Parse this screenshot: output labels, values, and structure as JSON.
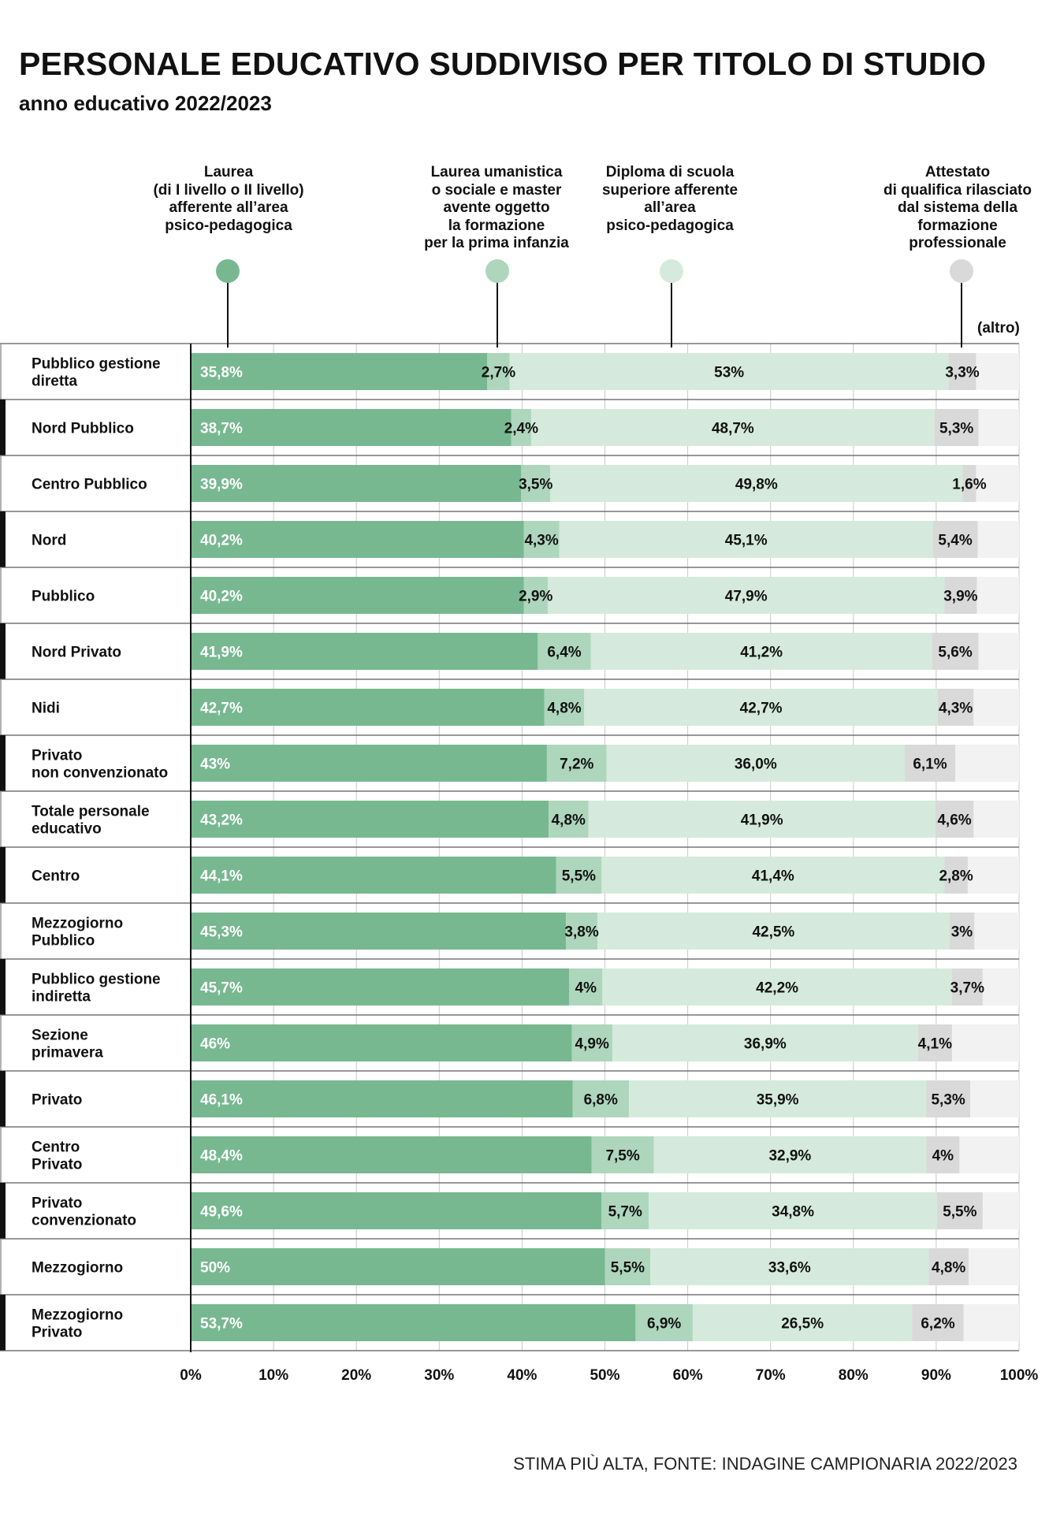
{
  "title": "PERSONALE EDUCATIVO SUDDIVISO PER TITOLO DI STUDIO",
  "subtitle": "anno educativo 2022/2023",
  "footer": "STIMA PIÙ ALTA,  FONTE: INDAGINE CAMPIONARIA 2022/2023",
  "colors": {
    "laurea": "#78b891",
    "laurea_umanistica": "#aed6bc",
    "diploma": "#d5eadc",
    "attestato": "#d9d9d9",
    "altro": "#f2f2f2"
  },
  "chart_data": {
    "type": "bar",
    "orientation": "horizontal",
    "stacked": true,
    "xlim": [
      0,
      100
    ],
    "x_ticks": [
      "0%",
      "10%",
      "20%",
      "30%",
      "40%",
      "50%",
      "60%",
      "70%",
      "80%",
      "90%",
      "100%"
    ],
    "legend": [
      {
        "key": "laurea",
        "label": "Laurea\n(di I livello o II livello)\nafferente all’area\npsico-pedagogica"
      },
      {
        "key": "laurea_umanistica",
        "label": "Laurea umanistica\no sociale e master\navente oggetto\nla formazione\nper la prima infanzia"
      },
      {
        "key": "diploma",
        "label": "Diploma di scuola\nsuperiore afferente\nall’area\npsico-pedagogica"
      },
      {
        "key": "attestato",
        "label": "Attestato\ndi qualifica rilasciato\ndal sistema della\nformazione\nprofessionale"
      },
      {
        "key": "altro",
        "label": "(altro)"
      }
    ],
    "rows": [
      {
        "category": "Pubblico gestione\ndiretta",
        "marker": "white",
        "values": [
          35.8,
          2.7,
          53,
          3.3
        ],
        "labels": [
          "35,8%",
          "2,7%",
          "53%",
          "3,3%"
        ]
      },
      {
        "category": "Nord Pubblico",
        "marker": "black",
        "values": [
          38.7,
          2.4,
          48.7,
          5.3
        ],
        "labels": [
          "38,7%",
          "2,4%",
          "48,7%",
          "5,3%"
        ]
      },
      {
        "category": "Centro Pubblico",
        "marker": "white",
        "values": [
          39.9,
          3.5,
          49.8,
          1.6
        ],
        "labels": [
          "39,9%",
          "3,5%",
          "49,8%",
          "1,6%"
        ]
      },
      {
        "category": "Nord",
        "marker": "black",
        "values": [
          40.2,
          4.3,
          45.1,
          5.4
        ],
        "labels": [
          "40,2%",
          "4,3%",
          "45,1%",
          "5,4%"
        ]
      },
      {
        "category": "Pubblico",
        "marker": "white",
        "values": [
          40.2,
          2.9,
          47.9,
          3.9
        ],
        "labels": [
          "40,2%",
          "2,9%",
          "47,9%",
          "3,9%"
        ]
      },
      {
        "category": "Nord Privato",
        "marker": "black",
        "values": [
          41.9,
          6.4,
          41.2,
          5.6
        ],
        "labels": [
          "41,9%",
          "6,4%",
          "41,2%",
          "5,6%"
        ]
      },
      {
        "category": "Nidi",
        "marker": "white",
        "values": [
          42.7,
          4.8,
          42.7,
          4.3
        ],
        "labels": [
          "42,7%",
          "4,8%",
          "42,7%",
          "4,3%"
        ]
      },
      {
        "category": "Privato\nnon convenzionato",
        "marker": "black",
        "values": [
          43,
          7.2,
          36.0,
          6.1
        ],
        "labels": [
          "43%",
          "7,2%",
          "36,0%",
          "6,1%"
        ]
      },
      {
        "category": "Totale personale\neducativo",
        "marker": "white",
        "values": [
          43.2,
          4.8,
          41.9,
          4.6
        ],
        "labels": [
          "43,2%",
          "4,8%",
          "41,9%",
          "4,6%"
        ]
      },
      {
        "category": "Centro",
        "marker": "black",
        "values": [
          44.1,
          5.5,
          41.4,
          2.8
        ],
        "labels": [
          "44,1%",
          "5,5%",
          "41,4%",
          "2,8%"
        ]
      },
      {
        "category": "Mezzogiorno\nPubblico",
        "marker": "white",
        "values": [
          45.3,
          3.8,
          42.5,
          3
        ],
        "labels": [
          "45,3%",
          "3,8%",
          "42,5%",
          "3%"
        ]
      },
      {
        "category": "Pubblico gestione\nindiretta",
        "marker": "black",
        "values": [
          45.7,
          4,
          42.2,
          3.7
        ],
        "labels": [
          "45,7%",
          "4%",
          "42,2%",
          "3,7%"
        ]
      },
      {
        "category": "Sezione\nprimavera",
        "marker": "white",
        "values": [
          46,
          4.9,
          36.9,
          4.1
        ],
        "labels": [
          "46%",
          "4,9%",
          "36,9%",
          "4,1%"
        ]
      },
      {
        "category": "Privato",
        "marker": "black",
        "values": [
          46.1,
          6.8,
          35.9,
          5.3
        ],
        "labels": [
          "46,1%",
          "6,8%",
          "35,9%",
          "5,3%"
        ]
      },
      {
        "category": "Centro\nPrivato",
        "marker": "white",
        "values": [
          48.4,
          7.5,
          32.9,
          4
        ],
        "labels": [
          "48,4%",
          "7,5%",
          "32,9%",
          "4%"
        ]
      },
      {
        "category": "Privato\nconvenzionato",
        "marker": "black",
        "values": [
          49.6,
          5.7,
          34.8,
          5.5
        ],
        "labels": [
          "49,6%",
          "5,7%",
          "34,8%",
          "5,5%"
        ]
      },
      {
        "category": "Mezzogiorno",
        "marker": "white",
        "values": [
          50,
          5.5,
          33.6,
          4.8
        ],
        "labels": [
          "50%",
          "5,5%",
          "33,6%",
          "4,8%"
        ]
      },
      {
        "category": "Mezzogiorno\nPrivato",
        "marker": "black",
        "values": [
          53.7,
          6.9,
          26.5,
          6.2
        ],
        "labels": [
          "53,7%",
          "6,9%",
          "26,5%",
          "6,2%"
        ]
      }
    ]
  }
}
